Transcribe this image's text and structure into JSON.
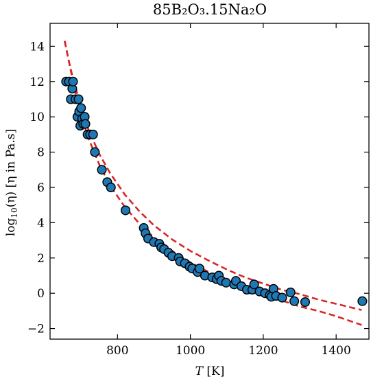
{
  "chart_data": {
    "type": "scatter",
    "title": "85B₂O₃.15Na₂O",
    "xlabel": {
      "italic": "T",
      "rest": "  [K]"
    },
    "ylabel": {
      "base": "log",
      "sub": "10",
      "arg": "(η)",
      "rest": "  [η in Pa.s]"
    },
    "xlim": [
      615,
      1490
    ],
    "ylim": [
      -2.6,
      15.3
    ],
    "xticks": [
      800,
      1000,
      1200,
      1400
    ],
    "yticks": [
      -2,
      0,
      2,
      4,
      6,
      8,
      10,
      12,
      14
    ],
    "grid": false,
    "colors": {
      "points": "#1f77b4",
      "fit_lines": "#d62728"
    },
    "series": [
      {
        "points": [
          [
            659,
            12.0
          ],
          [
            667,
            12.0
          ],
          [
            672,
            11.0
          ],
          [
            676,
            11.6
          ],
          [
            678,
            12.0
          ],
          [
            685,
            11.0
          ],
          [
            690,
            10.0
          ],
          [
            693,
            11.0
          ],
          [
            695,
            10.3
          ],
          [
            698,
            9.5
          ],
          [
            700,
            10.5
          ],
          [
            703,
            9.9
          ],
          [
            706,
            9.6
          ],
          [
            710,
            10.0
          ],
          [
            712,
            9.6
          ],
          [
            718,
            9.0
          ],
          [
            725,
            9.0
          ],
          [
            733,
            9.0
          ],
          [
            738,
            8.0
          ],
          [
            757,
            7.0
          ],
          [
            772,
            6.3
          ],
          [
            782,
            6.0
          ],
          [
            822,
            4.7
          ],
          [
            872,
            3.7
          ],
          [
            877,
            3.4
          ],
          [
            884,
            3.1
          ],
          [
            900,
            2.9
          ],
          [
            915,
            2.8
          ],
          [
            920,
            2.6
          ],
          [
            928,
            2.5
          ],
          [
            940,
            2.3
          ],
          [
            950,
            2.1
          ],
          [
            968,
            2.0
          ],
          [
            972,
            1.8
          ],
          [
            985,
            1.7
          ],
          [
            998,
            1.5
          ],
          [
            1005,
            1.4
          ],
          [
            1020,
            1.2
          ],
          [
            1025,
            1.4
          ],
          [
            1040,
            1.0
          ],
          [
            1060,
            0.9
          ],
          [
            1072,
            0.8
          ],
          [
            1078,
            1.0
          ],
          [
            1085,
            0.7
          ],
          [
            1098,
            0.6
          ],
          [
            1120,
            0.5
          ],
          [
            1125,
            0.7
          ],
          [
            1140,
            0.4
          ],
          [
            1155,
            0.2
          ],
          [
            1170,
            0.2
          ],
          [
            1175,
            0.5
          ],
          [
            1190,
            0.1
          ],
          [
            1205,
            0.0
          ],
          [
            1218,
            -0.1
          ],
          [
            1222,
            -0.2
          ],
          [
            1228,
            0.25
          ],
          [
            1235,
            -0.15
          ],
          [
            1252,
            -0.25
          ],
          [
            1275,
            0.05
          ],
          [
            1285,
            -0.45
          ],
          [
            1315,
            -0.5
          ],
          [
            1472,
            -0.45
          ]
        ]
      }
    ],
    "fit_lines": [
      {
        "points": [
          [
            655,
            14.3
          ],
          [
            665,
            13.3
          ],
          [
            680,
            12.0
          ],
          [
            700,
            10.6
          ],
          [
            720,
            9.3
          ],
          [
            750,
            7.9
          ],
          [
            780,
            6.8
          ],
          [
            820,
            5.6
          ],
          [
            860,
            4.65
          ],
          [
            900,
            3.85
          ],
          [
            950,
            3.05
          ],
          [
            1000,
            2.4
          ],
          [
            1050,
            1.85
          ],
          [
            1100,
            1.35
          ],
          [
            1150,
            0.9
          ],
          [
            1200,
            0.55
          ],
          [
            1250,
            0.2
          ],
          [
            1300,
            -0.05
          ],
          [
            1350,
            -0.35
          ],
          [
            1400,
            -0.6
          ],
          [
            1470,
            -0.95
          ]
        ]
      },
      {
        "points": [
          [
            655,
            14.3
          ],
          [
            665,
            13.3
          ],
          [
            680,
            11.8
          ],
          [
            700,
            10.1
          ],
          [
            720,
            8.8
          ],
          [
            750,
            7.3
          ],
          [
            780,
            6.1
          ],
          [
            820,
            4.9
          ],
          [
            860,
            3.95
          ],
          [
            900,
            3.15
          ],
          [
            950,
            2.4
          ],
          [
            1000,
            1.75
          ],
          [
            1050,
            1.2
          ],
          [
            1100,
            0.7
          ],
          [
            1150,
            0.3
          ],
          [
            1200,
            -0.05
          ],
          [
            1250,
            -0.4
          ],
          [
            1300,
            -0.75
          ],
          [
            1350,
            -1.0
          ],
          [
            1400,
            -1.3
          ],
          [
            1470,
            -1.8
          ]
        ]
      }
    ]
  }
}
